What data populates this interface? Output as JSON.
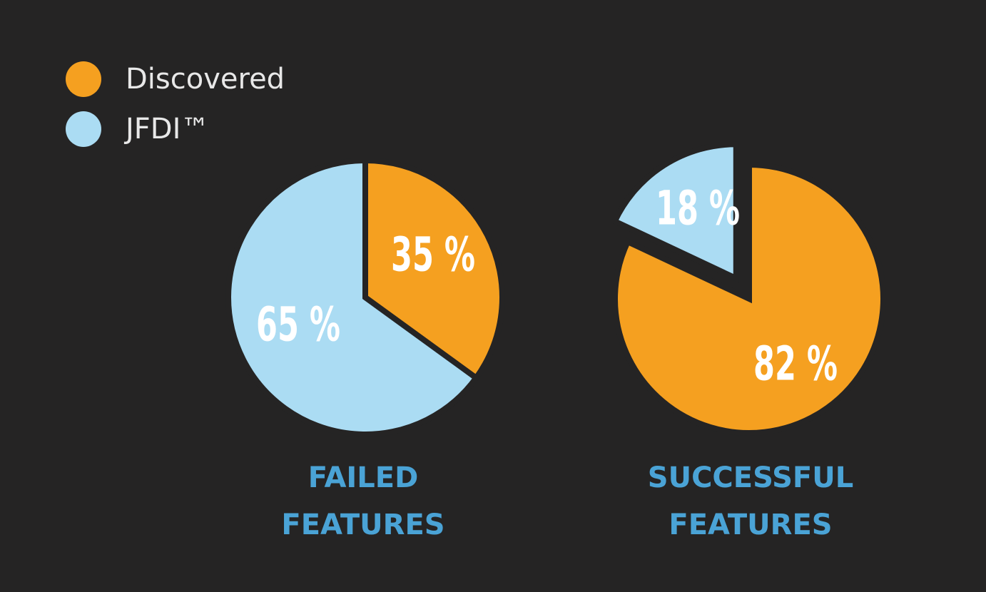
{
  "legend": [
    {
      "label": "Discovered",
      "color": "#f5a020"
    },
    {
      "label": "JFDI™",
      "color": "#abdcf3"
    }
  ],
  "chart_data": [
    {
      "type": "pie",
      "title_lines": [
        "FAILED",
        "FEATURES"
      ],
      "slices": [
        {
          "series": "Discovered",
          "value": 35,
          "label": "35 %",
          "color": "#f5a020"
        },
        {
          "series": "JFDI™",
          "value": 65,
          "label": "65 %",
          "color": "#abdcf3"
        }
      ]
    },
    {
      "type": "pie",
      "title_lines": [
        "SUCCESSFUL",
        "FEATURES"
      ],
      "slices": [
        {
          "series": "Discovered",
          "value": 82,
          "label": "82 %",
          "color": "#f5a020"
        },
        {
          "series": "JFDI™",
          "value": 18,
          "label": "18 %",
          "color": "#abdcf3"
        }
      ]
    }
  ]
}
